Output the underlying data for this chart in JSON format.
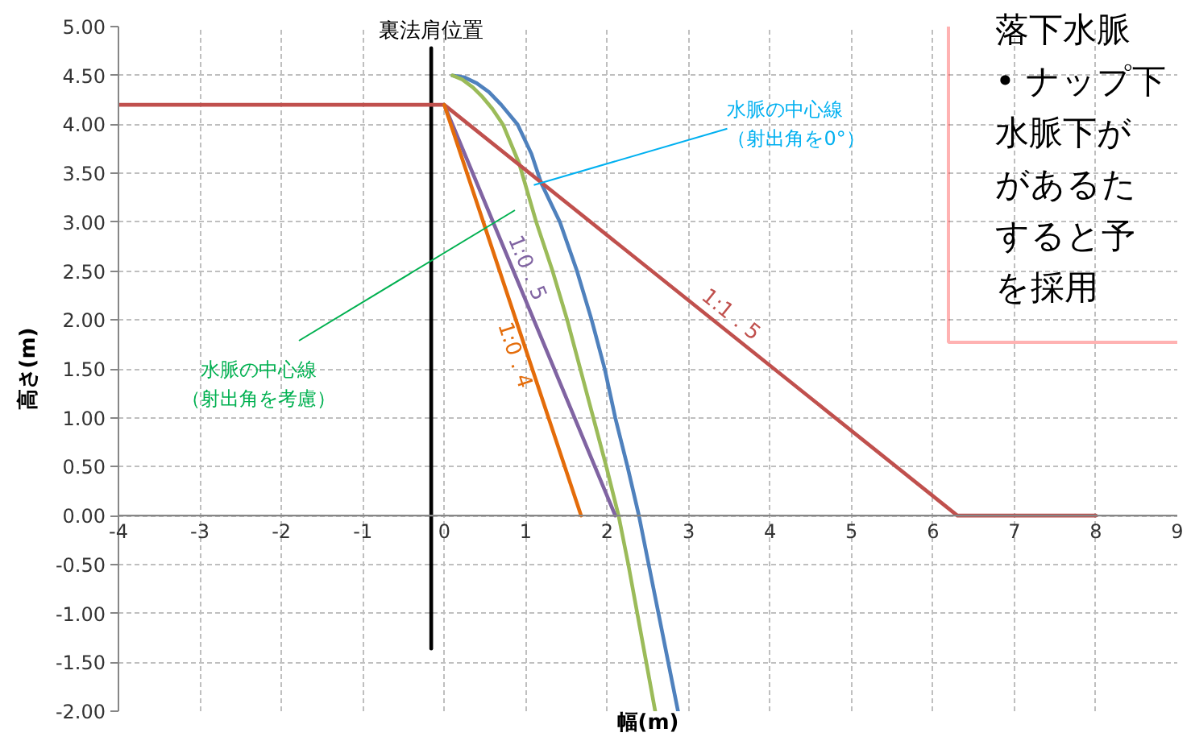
{
  "chart_data": {
    "type": "line",
    "xlabel": "幅(m)",
    "ylabel": "高さ(m)",
    "xlim": [
      -4,
      9
    ],
    "ylim": [
      -2,
      5
    ],
    "xticks": [
      -4,
      -3,
      -2,
      -1,
      0,
      1,
      2,
      3,
      4,
      5,
      6,
      7,
      8,
      9
    ],
    "yticks": [
      {
        "value": 5,
        "label": "5.00"
      },
      {
        "value": 4.5,
        "label": "4.50"
      },
      {
        "value": 4,
        "label": "4.00"
      },
      {
        "value": 3.5,
        "label": "3.50"
      },
      {
        "value": 3,
        "label": "3.00"
      },
      {
        "value": 2.5,
        "label": "2.50"
      },
      {
        "value": 2,
        "label": "2.00"
      },
      {
        "value": 1.5,
        "label": "1.50"
      },
      {
        "value": 1,
        "label": "1.00"
      },
      {
        "value": 0.5,
        "label": "0.50"
      },
      {
        "value": 0,
        "label": "0.00"
      },
      {
        "value": -0.5,
        "label": "-0.50"
      },
      {
        "value": -1,
        "label": "-1.00"
      },
      {
        "value": -1.5,
        "label": "-1.50"
      },
      {
        "value": -2,
        "label": "-2.00"
      }
    ],
    "grid": true,
    "series": [
      {
        "name": "裏法肩位置",
        "color": "#000000",
        "x": [
          -0.16,
          -0.16
        ],
        "values": [
          4.78,
          -1.36
        ]
      },
      {
        "color": "#4f81bd",
        "x": [
          0.1,
          0.25,
          0.4,
          0.55,
          0.7,
          0.9,
          1.07,
          1.19,
          1.42,
          1.63,
          1.81,
          1.97,
          2.1,
          2.25,
          2.39,
          2.51,
          2.63,
          2.75,
          2.87
        ],
        "values": [
          4.5,
          4.48,
          4.42,
          4.33,
          4.2,
          4.0,
          3.7,
          3.4,
          3.0,
          2.5,
          2.0,
          1.5,
          1.0,
          0.5,
          0,
          -0.5,
          -1.0,
          -1.5,
          -2.0
        ]
      },
      {
        "color": "#9bbb59",
        "x": [
          0.1,
          0.22,
          0.35,
          0.47,
          0.59,
          0.72,
          0.92,
          1.13,
          1.33,
          1.51,
          1.67,
          1.83,
          1.99,
          2.14,
          2.26,
          2.37,
          2.48,
          2.59
        ],
        "values": [
          4.5,
          4.46,
          4.38,
          4.28,
          4.16,
          4.0,
          3.6,
          3.0,
          2.5,
          2.0,
          1.5,
          1.0,
          0.5,
          0,
          -0.5,
          -1.0,
          -1.5,
          -2.0
        ]
      },
      {
        "name": "1:1．5",
        "color": "#c0504d",
        "x": [
          -4,
          0,
          6.3,
          8
        ],
        "values": [
          4.2,
          4.2,
          0,
          0
        ]
      },
      {
        "name": "1:0．5",
        "color": "#8064a2",
        "x": [
          0,
          2.1
        ],
        "values": [
          4.2,
          0
        ]
      },
      {
        "name": "1:0．4",
        "color": "#e46c0a",
        "x": [
          0,
          1.68
        ],
        "values": [
          4.2,
          0
        ]
      }
    ],
    "annotations": [
      {
        "text": "水脈の中心線（射出角を0°）",
        "x": 1.1,
        "y": 3.38
      },
      "水脈の中心線（射出角を考慮）",
      "落下水脈",
      "• ナップ下",
      "水脈下が",
      "があるた",
      "すると予",
      "を採用"
    ]
  }
}
